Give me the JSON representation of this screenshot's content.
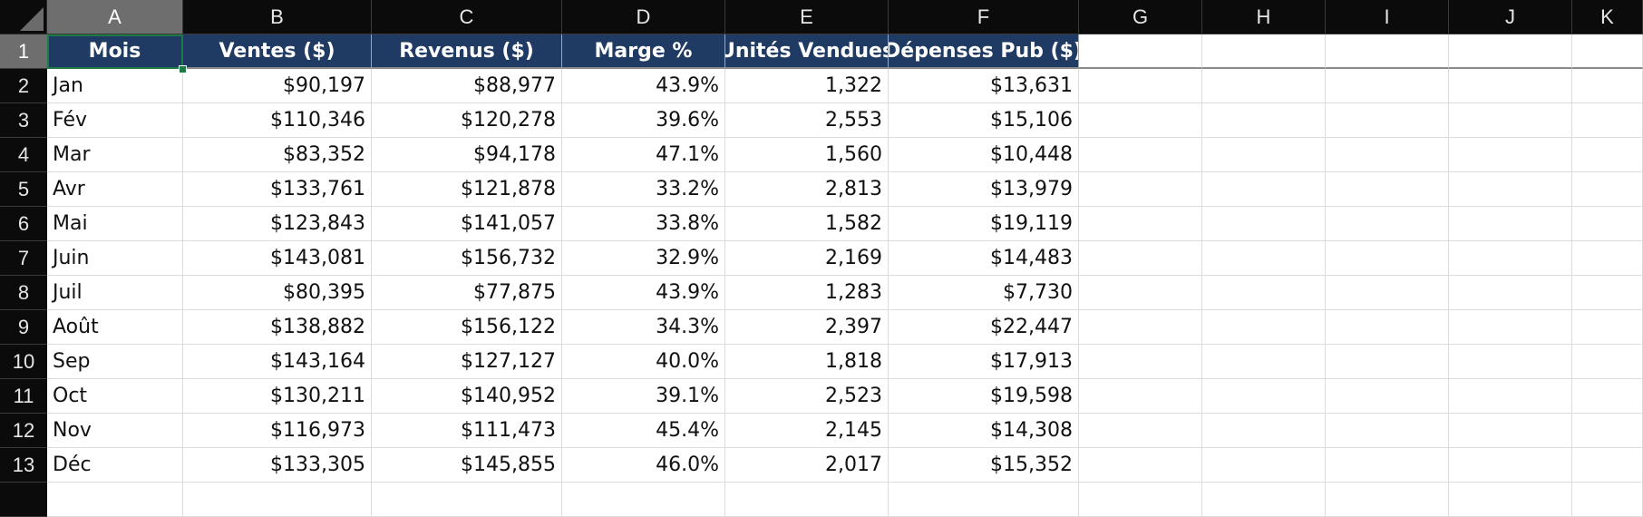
{
  "columns": [
    "A",
    "B",
    "C",
    "D",
    "E",
    "F",
    "G",
    "H",
    "I",
    "J",
    "K"
  ],
  "rows": [
    "1",
    "2",
    "3",
    "4",
    "5",
    "6",
    "7",
    "8",
    "9",
    "10",
    "11",
    "12",
    "13"
  ],
  "active_cell": "A1",
  "accent_colors": {
    "header_fill": "#1f3b63",
    "selection": "#1e7b45",
    "header_bg": "#0b0b0b"
  },
  "table": {
    "headers": [
      "Mois",
      "Ventes ($)",
      "Revenus ($)",
      "Marge %",
      "Unités Vendues",
      "Dépenses Pub ($)"
    ],
    "rows": [
      [
        "Jan",
        "$90,197",
        "$88,977",
        "43.9%",
        "1,322",
        "$13,631"
      ],
      [
        "Fév",
        "$110,346",
        "$120,278",
        "39.6%",
        "2,553",
        "$15,106"
      ],
      [
        "Mar",
        "$83,352",
        "$94,178",
        "47.1%",
        "1,560",
        "$10,448"
      ],
      [
        "Avr",
        "$133,761",
        "$121,878",
        "33.2%",
        "2,813",
        "$13,979"
      ],
      [
        "Mai",
        "$123,843",
        "$141,057",
        "33.8%",
        "1,582",
        "$19,119"
      ],
      [
        "Juin",
        "$143,081",
        "$156,732",
        "32.9%",
        "2,169",
        "$14,483"
      ],
      [
        "Juil",
        "$80,395",
        "$77,875",
        "43.9%",
        "1,283",
        "$7,730"
      ],
      [
        "Août",
        "$138,882",
        "$156,122",
        "34.3%",
        "2,397",
        "$22,447"
      ],
      [
        "Sep",
        "$143,164",
        "$127,127",
        "40.0%",
        "1,818",
        "$17,913"
      ],
      [
        "Oct",
        "$130,211",
        "$140,952",
        "39.1%",
        "2,523",
        "$19,598"
      ],
      [
        "Nov",
        "$116,973",
        "$111,473",
        "45.4%",
        "2,145",
        "$14,308"
      ],
      [
        "Déc",
        "$133,305",
        "$145,855",
        "46.0%",
        "2,017",
        "$15,352"
      ]
    ]
  }
}
